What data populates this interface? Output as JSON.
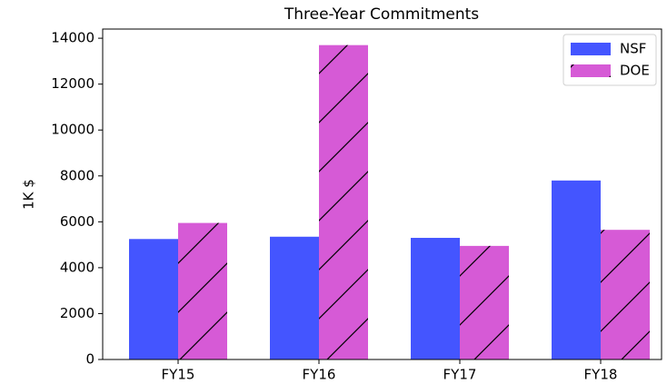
{
  "chart_data": {
    "type": "bar",
    "title": "Three-Year Commitments",
    "ylabel": "1K $",
    "categories": [
      "FY15",
      "FY16",
      "FY17",
      "FY18"
    ],
    "series": [
      {
        "name": "NSF",
        "color": "#4455ff",
        "values": [
          5250,
          5350,
          5300,
          7800
        ]
      },
      {
        "name": "DOE",
        "color": "#d65ad6",
        "hatch": "/",
        "values": [
          5950,
          13700,
          4950,
          5650
        ]
      }
    ],
    "ylim": [
      0,
      14400
    ],
    "yticks": [
      0,
      2000,
      4000,
      6000,
      8000,
      10000,
      12000,
      14000
    ],
    "legend": "upper right"
  }
}
